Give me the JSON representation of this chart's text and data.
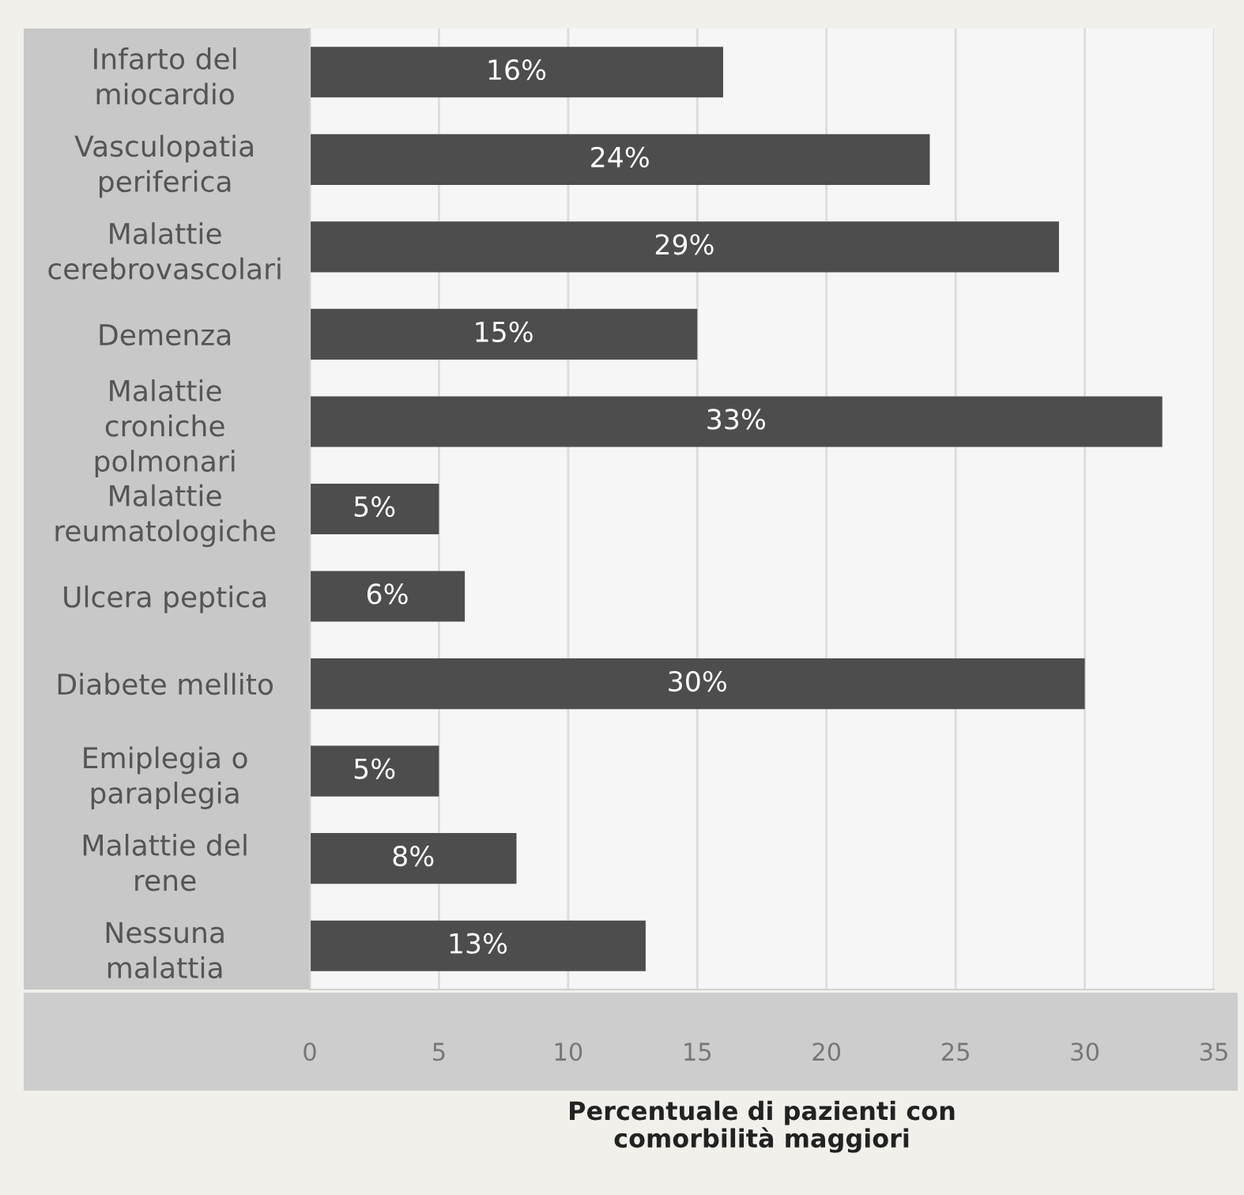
{
  "chart_data": {
    "type": "bar",
    "orientation": "horizontal",
    "categories": [
      "Infarto del\nmiocardio",
      "Vasculopatia\nperiferica",
      "Malattie\ncerebrovascolari",
      "Demenza",
      "Malattie\ncroniche\npolmonari",
      "Malattie\nreumatologiche",
      "Ulcera peptica",
      "Diabete mellito",
      "Emiplegia o\nparaplegia",
      "Malattie del\nrene",
      "Nessuna\nmalattia"
    ],
    "values": [
      16,
      24,
      29,
      15,
      33,
      5,
      6,
      30,
      5,
      8,
      13
    ],
    "value_labels": [
      "16%",
      "24%",
      "29%",
      "15%",
      "33%",
      "5%",
      "6%",
      "30%",
      "5%",
      "8%",
      "13%"
    ],
    "color": "#4d4d4d",
    "xlabel": "Percentuale di pazienti con\ncomorbilità maggiori",
    "xlim": [
      0,
      35
    ],
    "xticks": [
      0,
      5,
      10,
      15,
      20,
      25,
      30,
      35
    ],
    "grid": "x"
  }
}
